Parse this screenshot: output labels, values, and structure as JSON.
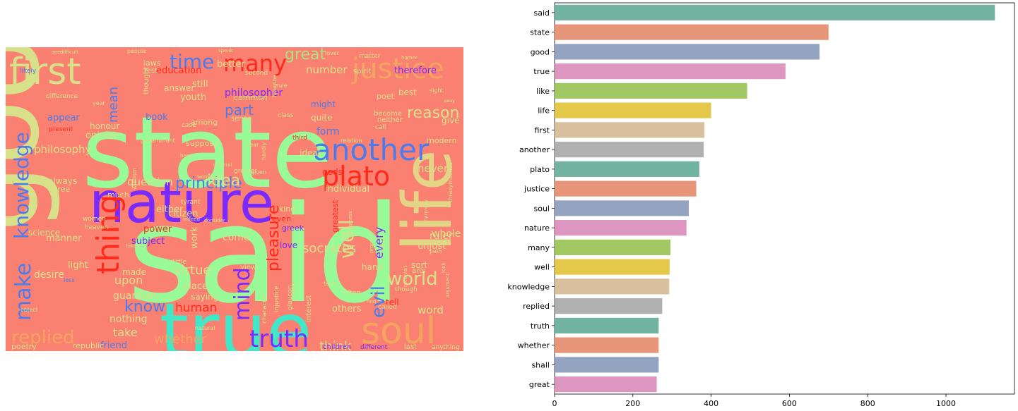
{
  "chart_data": [
    {
      "type": "wordcloud",
      "background": "#fa8072",
      "words": [
        {
          "text": "said",
          "color": "#98fb98"
        },
        {
          "text": "state",
          "color": "#98fb98"
        },
        {
          "text": "good",
          "color": "#d6e18a"
        },
        {
          "text": "true",
          "color": "#40e8c8"
        },
        {
          "text": "nature",
          "color": "#7a29ff"
        },
        {
          "text": "life",
          "color": "#e3d585"
        },
        {
          "text": "soul",
          "color": "#f4a460"
        },
        {
          "text": "first",
          "color": "#d6e18a"
        },
        {
          "text": "justice",
          "color": "#f4a460"
        },
        {
          "text": "another",
          "color": "#4a7cf0"
        },
        {
          "text": "plato",
          "color": "#ff2a1a"
        },
        {
          "text": "many",
          "color": "#ff2a1a"
        },
        {
          "text": "thing",
          "color": "#ff2a1a"
        },
        {
          "text": "time",
          "color": "#4a7cf0"
        },
        {
          "text": "great",
          "color": "#b0e080"
        },
        {
          "text": "knowledge",
          "color": "#4a7cf0"
        },
        {
          "text": "make",
          "color": "#4a7cf0"
        },
        {
          "text": "truth",
          "color": "#7a29ff"
        },
        {
          "text": "mind",
          "color": "#7a29ff"
        },
        {
          "text": "well",
          "color": "#d6e18a"
        },
        {
          "text": "replied",
          "color": "#f4a460"
        },
        {
          "text": "world",
          "color": "#d6e18a"
        },
        {
          "text": "evil",
          "color": "#4a7cf0"
        },
        {
          "text": "pleasure",
          "color": "#ff2a1a"
        },
        {
          "text": "principle",
          "color": "#4a7cf0"
        },
        {
          "text": "idea",
          "color": "#d6e18a"
        },
        {
          "text": "reason",
          "color": "#d6e18a"
        },
        {
          "text": "part",
          "color": "#4a7cf0"
        },
        {
          "text": "socrates",
          "color": "#d6e18a"
        },
        {
          "text": "know",
          "color": "#4a7cf0"
        },
        {
          "text": "whether",
          "color": "#f4a460"
        },
        {
          "text": "think",
          "color": "#d6e18a"
        },
        {
          "text": "human",
          "color": "#ff2a1a"
        },
        {
          "text": "virtue",
          "color": "#d6e18a"
        },
        {
          "text": "mean",
          "color": "#4a7cf0"
        },
        {
          "text": "philosophy",
          "color": "#d6e18a"
        },
        {
          "text": "education",
          "color": "#ff2a1a"
        },
        {
          "text": "number",
          "color": "#d6e18a"
        },
        {
          "text": "philosopher",
          "color": "#7a29ff"
        },
        {
          "text": "never",
          "color": "#d6e18a"
        },
        {
          "text": "question",
          "color": "#d6e18a"
        },
        {
          "text": "form",
          "color": "#4a7cf0"
        },
        {
          "text": "therefore",
          "color": "#7a29ff"
        },
        {
          "text": "individual",
          "color": "#d6e18a"
        },
        {
          "text": "word",
          "color": "#d6e18a"
        },
        {
          "text": "take",
          "color": "#d6e18a"
        },
        {
          "text": "upon",
          "color": "#d6e18a"
        },
        {
          "text": "guardian",
          "color": "#d6e18a"
        },
        {
          "text": "others",
          "color": "#d6e18a"
        },
        {
          "text": "friend",
          "color": "#4a7cf0"
        },
        {
          "text": "nothing",
          "color": "#d6e18a"
        },
        {
          "text": "every",
          "color": "#7a29ff"
        },
        {
          "text": "greek",
          "color": "#7a29ff"
        },
        {
          "text": "ruler",
          "color": "#d6e18a"
        },
        {
          "text": "whole",
          "color": "#d6e18a"
        },
        {
          "text": "unjust",
          "color": "#d6e18a"
        },
        {
          "text": "children",
          "color": "#7a29ff"
        },
        {
          "text": "different",
          "color": "#7a29ff"
        },
        {
          "text": "last",
          "color": "#d6e18a"
        },
        {
          "text": "republic",
          "color": "#d6e18a"
        },
        {
          "text": "poetry",
          "color": "#d6e18a"
        },
        {
          "text": "science",
          "color": "#d6e18a"
        },
        {
          "text": "desire",
          "color": "#d6e18a"
        },
        {
          "text": "manner",
          "color": "#d6e18a"
        },
        {
          "text": "light",
          "color": "#d6e18a"
        },
        {
          "text": "subject",
          "color": "#7a29ff"
        },
        {
          "text": "love",
          "color": "#7a29ff"
        },
        {
          "text": "come",
          "color": "#d6e18a"
        },
        {
          "text": "work",
          "color": "#d6e18a"
        },
        {
          "text": "citizen",
          "color": "#d6e18a"
        },
        {
          "text": "either",
          "color": "#d6e18a"
        },
        {
          "text": "power",
          "color": "#ff2a1a"
        },
        {
          "text": "book",
          "color": "#4a7cf0"
        },
        {
          "text": "youth",
          "color": "#d6e18a"
        },
        {
          "text": "still",
          "color": "#d6e18a"
        },
        {
          "text": "thought",
          "color": "#d6e18a"
        },
        {
          "text": "answer",
          "color": "#d6e18a"
        },
        {
          "text": "opinion",
          "color": "#d6e18a"
        },
        {
          "text": "honour",
          "color": "#d6e18a"
        },
        {
          "text": "appear",
          "color": "#4a7cf0"
        },
        {
          "text": "better",
          "color": "#d6e18a"
        },
        {
          "text": "laws",
          "color": "#d6e18a"
        },
        {
          "text": "rest",
          "color": "#d6e18a"
        },
        {
          "text": "might",
          "color": "#4a7cf0"
        },
        {
          "text": "quite",
          "color": "#d6e18a"
        },
        {
          "text": "give",
          "color": "#d6e18a"
        },
        {
          "text": "best",
          "color": "#d6e18a"
        },
        {
          "text": "poet",
          "color": "#d6e18a"
        },
        {
          "text": "ideal",
          "color": "#d6e18a"
        },
        {
          "text": "gods",
          "color": "#ff2a1a"
        },
        {
          "text": "kind",
          "color": "#d6e18a"
        },
        {
          "text": "even",
          "color": "#ff2a1a"
        },
        {
          "text": "greatest",
          "color": "#ff2a1a"
        },
        {
          "text": "always",
          "color": "#d6e18a"
        },
        {
          "text": "three",
          "color": "#d6e18a"
        },
        {
          "text": "much",
          "color": "#d6e18a"
        },
        {
          "text": "made",
          "color": "#d6e18a"
        },
        {
          "text": "place",
          "color": "#d6e18a"
        },
        {
          "text": "saying",
          "color": "#d6e18a"
        },
        {
          "text": "hand",
          "color": "#d6e18a"
        },
        {
          "text": "sort",
          "color": "#d6e18a"
        },
        {
          "text": "tell",
          "color": "#ff2a1a"
        },
        {
          "text": "common",
          "color": "#d6e18a"
        },
        {
          "text": "modern",
          "color": "#d6e18a"
        },
        {
          "text": "spirit",
          "color": "#d6e18a"
        },
        {
          "text": "likely",
          "color": "#4a7cf0"
        },
        {
          "text": "difference",
          "color": "#d6e18a"
        },
        {
          "text": "present",
          "color": "#ff2a1a"
        },
        {
          "text": "year",
          "color": "#d6e18a"
        },
        {
          "text": "wisdom",
          "color": "#d6e18a"
        },
        {
          "text": "tyrant",
          "color": "#d6e18a"
        },
        {
          "text": "heaven",
          "color": "#d6e18a"
        },
        {
          "text": "view",
          "color": "#d6e18a"
        },
        {
          "text": "interest",
          "color": "#d6e18a"
        },
        {
          "text": "character",
          "color": "#d6e18a"
        },
        {
          "text": "injustice",
          "color": "#d6e18a"
        },
        {
          "text": "glaucon",
          "color": "#d6e18a"
        },
        {
          "text": "suppose",
          "color": "#d6e18a"
        },
        {
          "text": "among",
          "color": "#d6e18a"
        },
        {
          "text": "sense",
          "color": "#d6e18a"
        },
        {
          "text": "neither",
          "color": "#d6e18a"
        },
        {
          "text": "become",
          "color": "#d6e18a"
        },
        {
          "text": "thrasymachus",
          "color": "#d6e18a"
        },
        {
          "text": "harmony",
          "color": "#d6e18a"
        },
        {
          "text": "arts",
          "color": "#d6e18a"
        },
        {
          "text": "often",
          "color": "#d6e18a"
        },
        {
          "text": "called",
          "color": "#d6e18a"
        },
        {
          "text": "though",
          "color": "#d6e18a"
        },
        {
          "text": "anything",
          "color": "#d6e18a"
        },
        {
          "text": "natural",
          "color": "#d6e18a"
        },
        {
          "text": "little",
          "color": "#d6e18a"
        },
        {
          "text": "less",
          "color": "#4a7cf0"
        },
        {
          "text": "matter",
          "color": "#d6e18a"
        },
        {
          "text": "lover",
          "color": "#d6e18a"
        },
        {
          "text": "homer",
          "color": "#d6e18a"
        },
        {
          "text": "third",
          "color": "#ff2a1a"
        },
        {
          "text": "class",
          "color": "#d6e18a"
        },
        {
          "text": "call",
          "color": "#d6e18a"
        },
        {
          "text": "happiness",
          "color": "#d6e18a"
        },
        {
          "text": "proceed",
          "color": "#d6e18a"
        },
        {
          "text": "given",
          "color": "#d6e18a"
        },
        {
          "text": "greater",
          "color": "#d6e18a"
        },
        {
          "text": "government",
          "color": "#d6e18a"
        },
        {
          "text": "general",
          "color": "#d6e18a"
        },
        {
          "text": "hear",
          "color": "#d6e18a"
        },
        {
          "text": "pain",
          "color": "#d6e18a"
        },
        {
          "text": "sight",
          "color": "#d6e18a"
        },
        {
          "text": "away",
          "color": "#d6e18a"
        },
        {
          "text": "indeed",
          "color": "#d6e18a"
        },
        {
          "text": "consider",
          "color": "#d6e18a"
        },
        {
          "text": "women",
          "color": "#d6e18a"
        },
        {
          "text": "object",
          "color": "#d6e18a"
        },
        {
          "text": "term",
          "color": "#d6e18a"
        },
        {
          "text": "look",
          "color": "#d6e18a"
        },
        {
          "text": "find",
          "color": "#d6e18a"
        },
        {
          "text": "case",
          "color": "#d6e18a"
        },
        {
          "text": "second",
          "color": "#d6e18a"
        },
        {
          "text": "relation",
          "color": "#d6e18a"
        },
        {
          "text": "imagine",
          "color": "#d6e18a"
        },
        {
          "text": "rule",
          "color": "#d6e18a"
        },
        {
          "text": "people",
          "color": "#d6e18a"
        },
        {
          "text": "seen",
          "color": "#d6e18a"
        },
        {
          "text": "difficult",
          "color": "#d6e18a"
        },
        {
          "text": "begin",
          "color": "#d6e18a"
        },
        {
          "text": "hardly",
          "color": "#d6e18a"
        },
        {
          "text": "taking",
          "color": "#d6e18a"
        },
        {
          "text": "speak",
          "color": "#d6e18a"
        },
        {
          "text": "higher",
          "color": "#d6e18a"
        },
        {
          "text": "woman",
          "color": "#d6e18a"
        },
        {
          "text": "argument",
          "color": "#d6e18a"
        },
        {
          "text": "received",
          "color": "#d6e18a"
        },
        {
          "text": "father",
          "color": "#d6e18a"
        }
      ]
    },
    {
      "type": "bar",
      "orientation": "horizontal",
      "categories": [
        "said",
        "state",
        "good",
        "true",
        "like",
        "life",
        "first",
        "another",
        "plato",
        "justice",
        "soul",
        "nature",
        "many",
        "well",
        "knowledge",
        "replied",
        "truth",
        "whether",
        "shall",
        "great"
      ],
      "values": [
        1125,
        700,
        677,
        590,
        492,
        400,
        383,
        381,
        370,
        362,
        343,
        337,
        296,
        294,
        293,
        275,
        266,
        266,
        266,
        261
      ],
      "colors": [
        "#73b4a0",
        "#e8967a",
        "#94a3c0",
        "#dc96c0",
        "#a2c864",
        "#e4c84a",
        "#d8c09e",
        "#b0b0b0"
      ],
      "xlim": [
        0,
        1175
      ],
      "xticks": [
        0,
        200,
        400,
        600,
        800,
        1000
      ],
      "xlabel": "",
      "ylabel": "",
      "grid": false
    }
  ]
}
